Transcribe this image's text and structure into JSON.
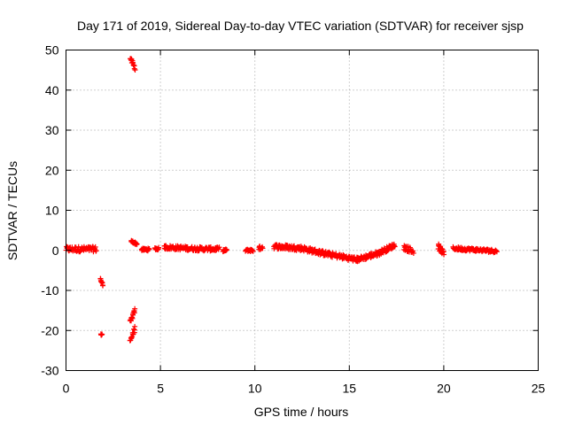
{
  "chart_data": {
    "type": "scatter",
    "title": "Day 171 of 2019, Sidereal Day-to-day VTEC variation (SDTVAR) for receiver sjsp",
    "xlabel": "GPS time / hours",
    "ylabel": "SDTVAR / TECUs",
    "xlim": [
      0,
      25
    ],
    "ylim": [
      -30,
      50
    ],
    "xticks": [
      0,
      5,
      10,
      15,
      20,
      25
    ],
    "yticks": [
      -30,
      -20,
      -10,
      0,
      10,
      20,
      30,
      40,
      50
    ],
    "grid": true,
    "marker": "+",
    "color": "#ff0000",
    "segments": [
      {
        "x0": 0.0,
        "x1": 1.6,
        "y0": 0.3,
        "y1": 0.3,
        "spread": 1.3
      },
      {
        "x0": 1.82,
        "x1": 1.95,
        "y0": -7.0,
        "y1": -8.8,
        "spread": 0.6
      },
      {
        "x0": 1.86,
        "x1": 1.9,
        "y0": -21.0,
        "y1": -21.0,
        "spread": 0.3
      },
      {
        "x0": 3.4,
        "x1": 3.65,
        "y0": 48.0,
        "y1": 45.5,
        "spread": 1.0
      },
      {
        "x0": 3.4,
        "x1": 3.65,
        "y0": -22.5,
        "y1": -19.5,
        "spread": 1.2
      },
      {
        "x0": 3.4,
        "x1": 3.65,
        "y0": -18.0,
        "y1": -15.0,
        "spread": 1.0
      },
      {
        "x0": 3.45,
        "x1": 3.75,
        "y0": 2.3,
        "y1": 1.6,
        "spread": 0.5
      },
      {
        "x0": 4.0,
        "x1": 4.4,
        "y0": 0.2,
        "y1": 0.2,
        "spread": 0.6
      },
      {
        "x0": 4.7,
        "x1": 4.9,
        "y0": 0.4,
        "y1": 0.4,
        "spread": 0.6
      },
      {
        "x0": 5.2,
        "x1": 6.9,
        "y0": 0.8,
        "y1": 0.4,
        "spread": 1.0
      },
      {
        "x0": 6.9,
        "x1": 8.1,
        "y0": 0.4,
        "y1": 0.3,
        "spread": 1.0
      },
      {
        "x0": 8.3,
        "x1": 8.5,
        "y0": 0.0,
        "y1": 0.0,
        "spread": 0.6
      },
      {
        "x0": 9.5,
        "x1": 9.9,
        "y0": 0.0,
        "y1": 0.0,
        "spread": 0.6
      },
      {
        "x0": 10.2,
        "x1": 10.4,
        "y0": 0.5,
        "y1": 0.8,
        "spread": 1.0
      },
      {
        "x0": 11.0,
        "x1": 12.5,
        "y0": 1.0,
        "y1": 0.5,
        "spread": 1.2
      },
      {
        "x0": 12.5,
        "x1": 13.7,
        "y0": 0.5,
        "y1": -0.8,
        "spread": 1.2
      },
      {
        "x0": 13.7,
        "x1": 15.4,
        "y0": -0.8,
        "y1": -2.3,
        "spread": 1.2
      },
      {
        "x0": 15.4,
        "x1": 16.5,
        "y0": -2.3,
        "y1": -0.8,
        "spread": 1.2
      },
      {
        "x0": 16.5,
        "x1": 17.4,
        "y0": -0.8,
        "y1": 1.3,
        "spread": 1.2
      },
      {
        "x0": 17.9,
        "x1": 18.4,
        "y0": 0.8,
        "y1": -0.2,
        "spread": 1.4
      },
      {
        "x0": 19.7,
        "x1": 20.0,
        "y0": 1.0,
        "y1": -0.8,
        "spread": 1.4
      },
      {
        "x0": 20.5,
        "x1": 22.8,
        "y0": 0.5,
        "y1": -0.2,
        "spread": 0.8
      }
    ]
  }
}
